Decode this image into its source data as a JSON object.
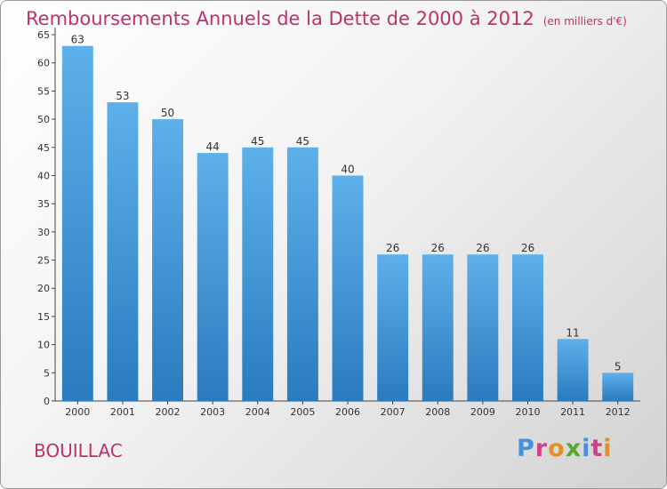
{
  "header": {
    "title": "Remboursements Annuels de la Dette de 2000 à 2012",
    "unit": "(en milliers d'€)"
  },
  "footer": {
    "commune": "BOUILLAC",
    "logo": "Proxiti"
  },
  "colors": {
    "title": "#c0306a",
    "bar_top": "#5eb0ea",
    "bar_bottom": "#2a7bbf",
    "logo_letters": [
      "#4a90d9",
      "#d0408a",
      "#e0902a",
      "#5aa832",
      "#4a90d9",
      "#d0408a",
      "#e0902a"
    ]
  },
  "chart_data": {
    "type": "bar",
    "title": "Remboursements Annuels de la Dette de 2000 à 2012",
    "subtitle": "(en milliers d'€)",
    "categories": [
      "2000",
      "2001",
      "2002",
      "2003",
      "2004",
      "2005",
      "2006",
      "2007",
      "2008",
      "2009",
      "2010",
      "2011",
      "2012"
    ],
    "values": [
      63,
      53,
      50,
      44,
      45,
      45,
      40,
      26,
      26,
      26,
      26,
      11,
      5
    ],
    "data_labels": [
      "63",
      "53",
      "50",
      "44",
      "45",
      "45",
      "40",
      "26",
      "26",
      "26",
      "26",
      "11",
      "5"
    ],
    "ylim": [
      0,
      65
    ],
    "yticks": [
      0,
      5,
      10,
      15,
      20,
      25,
      30,
      35,
      40,
      45,
      50,
      55,
      60,
      65
    ],
    "ytick_labels": [
      "0",
      "5",
      "10",
      "15",
      "20",
      "25",
      "30",
      "35",
      "40",
      "45",
      "50",
      "55",
      "60",
      "65"
    ],
    "grid": false,
    "legend": "none"
  }
}
